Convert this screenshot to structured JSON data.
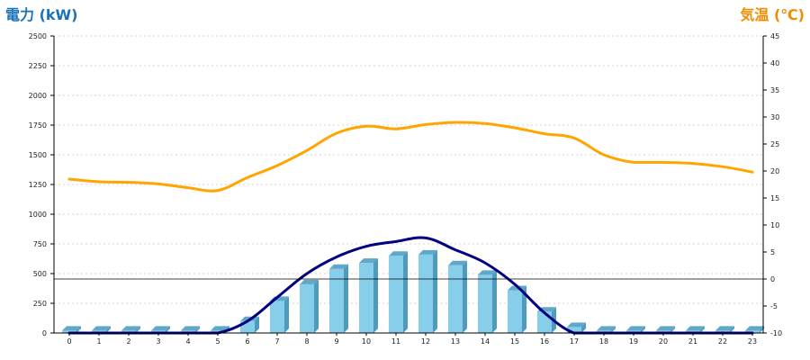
{
  "chart_data": {
    "type": "bar",
    "left_axis_title": "電力 (kW)",
    "right_axis_title": "気温 (℃)",
    "categories": [
      "0",
      "1",
      "2",
      "3",
      "4",
      "5",
      "6",
      "7",
      "8",
      "9",
      "10",
      "11",
      "12",
      "13",
      "14",
      "15",
      "16",
      "17",
      "18",
      "19",
      "20",
      "21",
      "22",
      "23"
    ],
    "ylim_left": [
      0,
      2500
    ],
    "yticks_left": [
      "0",
      "250",
      "500",
      "750",
      "1000",
      "1250",
      "1500",
      "1750",
      "2000",
      "2250",
      "2500"
    ],
    "ylim_right": [
      -10,
      45
    ],
    "yticks_right": [
      "-10",
      "-5",
      "0",
      "5",
      "10",
      "15",
      "20",
      "25",
      "30",
      "35",
      "40",
      "45"
    ],
    "grid": true,
    "series": [
      {
        "kind": "bar",
        "axis": "left",
        "values": [
          20,
          20,
          20,
          20,
          20,
          20,
          100,
          270,
          410,
          540,
          590,
          650,
          660,
          570,
          490,
          360,
          180,
          50,
          20,
          20,
          20,
          20,
          20,
          20
        ]
      },
      {
        "kind": "line",
        "axis": "left",
        "values": [
          0,
          0,
          0,
          0,
          0,
          0,
          100,
          300,
          500,
          640,
          730,
          770,
          800,
          700,
          590,
          410,
          170,
          0,
          0,
          0,
          0,
          0,
          0,
          0
        ]
      },
      {
        "kind": "line",
        "axis": "right",
        "values": [
          18.5,
          18.0,
          17.9,
          17.6,
          16.9,
          16.4,
          18.8,
          21.0,
          23.8,
          27.0,
          28.3,
          27.8,
          28.6,
          29.0,
          28.8,
          28.0,
          26.9,
          26.1,
          23.0,
          21.6,
          21.6,
          21.4,
          20.8,
          19.8
        ]
      }
    ],
    "colors": {
      "bar_front": "#87ceeb",
      "bar_top": "#5fa8c8",
      "bar_side": "#4f9bbd",
      "power_line": "#000080",
      "temperature_line": "#ffa500",
      "left_title": "#1a73b8",
      "right_title": "#f08c00"
    }
  }
}
